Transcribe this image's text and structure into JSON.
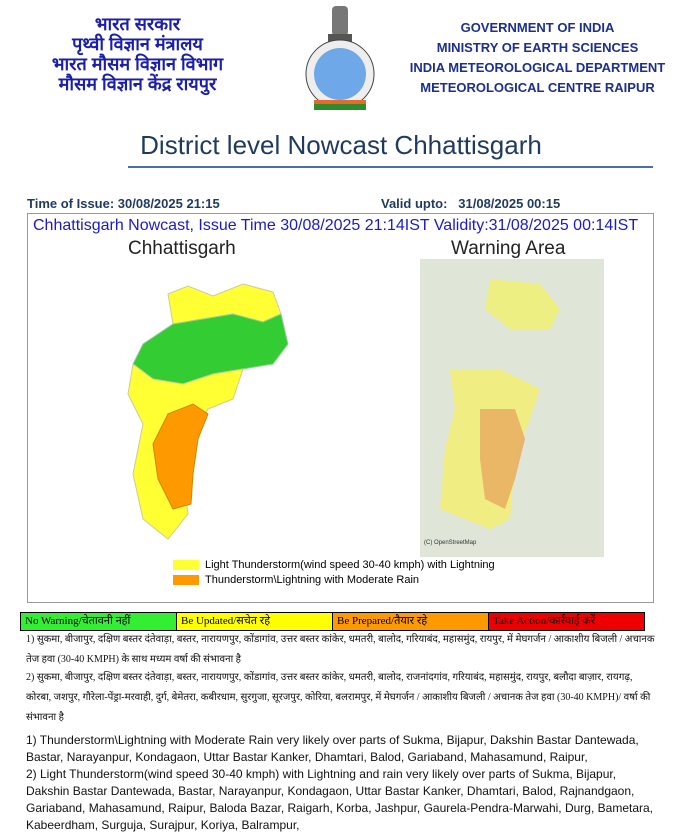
{
  "header": {
    "hindi_lines": [
      "भारत सरकार",
      "पृथ्वी विज्ञान मंत्रालय",
      "भारत मौसम विज्ञान विभाग",
      "मौसम विज्ञान केंद्र रायपुर"
    ],
    "english_lines": [
      "GOVERNMENT OF INDIA",
      "MINISTRY OF EARTH SCIENCES",
      "INDIA METEOROLOGICAL DEPARTMENT",
      "METEOROLOGICAL CENTRE RAIPUR"
    ],
    "emblem_icon": "imd-emblem"
  },
  "title": "District level Nowcast Chhattisgarh",
  "issue": {
    "time_of_issue": "Time of Issue: 30/08/2025 21:15",
    "valid_upto": "Valid upto:   31/08/2025 00:15"
  },
  "map": {
    "header": "Chhattisgarh Nowcast, Issue Time 30/08/2025 21:14IST  Validity:31/08/2025 00:14IST",
    "left_title": "Chhattisgarh",
    "right_title": "Warning Area",
    "legend": [
      {
        "label": "Light Thunderstorm(wind speed 30-40 kmph) with Lightning",
        "color": "#ffff33"
      },
      {
        "label": "Thunderstorm\\Lightning with Moderate Rain",
        "color": "#ff9900"
      }
    ],
    "colors": {
      "green": "#33cc33",
      "yellow": "#ffff33",
      "orange": "#ff9900"
    }
  },
  "warning_levels": [
    {
      "label": "No Warning/चेतावनी नहीं",
      "color": "#33ee33"
    },
    {
      "label": "Be Updated/सचेत रहे",
      "color": "#ffff00"
    },
    {
      "label": "Be Prepared/तैयार रहे",
      "color": "#ff9900"
    },
    {
      "label": "Take Action/कार्रवाई करें",
      "color": "#ee0000"
    }
  ],
  "hindi_text": [
    "1) सुकमा, बीजापुर, दक्षिण बस्तर दंतेवाड़ा, बस्तर, नारायणपुर, कोंडागांव, उत्तर बस्तर कांकेर, धमतरी, बालोद, गरियाबंद, महासमुंद, रायपुर, में मेघगर्जन / आकाशीय बिजली / अचानक तेज हवा (30-40 KMPH) के साथ मध्यम वर्षा की संभावना है",
    "2) सुकमा, बीजापुर, दक्षिण बस्तर दंतेवाड़ा, बस्तर, नारायणपुर, कोंडागांव, उत्तर बस्तर कांकेर, धमतरी, बालोद, राजनांदगांव, गरियाबंद, महासमुंद, रायपुर, बलौदा बाज़ार, रायगढ़, कोरबा, जशपुर, गौरेला-पेंड्रा-मरवाही, दुर्ग, बेमेतरा, कबीरधाम, सुरगुजा, सूरजपुर, कोरिया, बलरामपुर, में मेघगर्जन / आकाशीय बिजली / अचानक तेज हवा (30-40 KMPH)/ वर्षा की संभावना है"
  ],
  "english_text": [
    "1) Thunderstorm\\Lightning with Moderate Rain very likely over parts of Sukma, Bijapur, Dakshin Bastar Dantewada, Bastar, Narayanpur, Kondagaon, Uttar Bastar Kanker, Dhamtari, Balod, Gariaband, Mahasamund, Raipur,",
    "2) Light Thunderstorm(wind speed 30-40 kmph) with Lightning and rain  very likely over parts of Sukma, Bijapur, Dakshin Bastar Dantewada, Bastar, Narayanpur, Kondagaon, Uttar Bastar Kanker, Dhamtari, Balod, Rajnandgaon, Gariaband, Mahasamund, Raipur, Baloda Bazar, Raigarh, Korba, Jashpur, Gaurela-Pendra-Marwahi, Durg, Bametara, Kabeerdham, Surguja, Surajpur, Koriya, Balrampur,"
  ]
}
